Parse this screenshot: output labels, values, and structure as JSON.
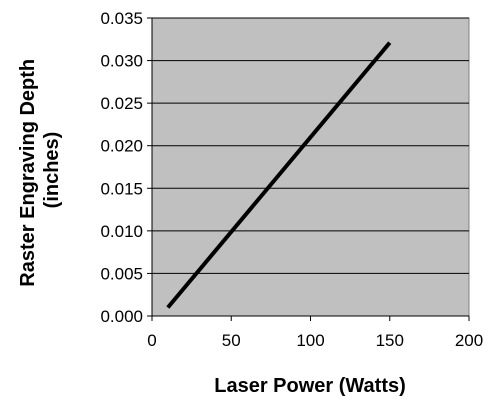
{
  "chart_data": {
    "type": "line",
    "title": "",
    "xlabel": "Laser Power (Watts)",
    "ylabel_lines": [
      "Raster Engraving Depth",
      "(inches)"
    ],
    "xlim": [
      0,
      200
    ],
    "ylim": [
      0,
      0.035
    ],
    "x_ticks": [
      "0",
      "50",
      "100",
      "150",
      "200"
    ],
    "y_ticks": [
      "0.000",
      "0.005",
      "0.010",
      "0.015",
      "0.020",
      "0.025",
      "0.030",
      "0.035"
    ],
    "grid": "horizontal",
    "legend": "none",
    "series": [
      {
        "x": [
          10,
          150
        ],
        "y": [
          0.001,
          0.0321
        ]
      }
    ],
    "colors": {
      "plot_background": "#c0c0c0",
      "line": "#000000",
      "grid": "#000000"
    }
  }
}
